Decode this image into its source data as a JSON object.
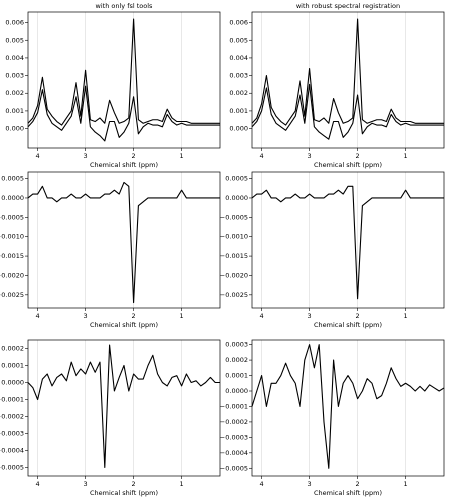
{
  "chart_data": [
    {
      "type": "line",
      "title": "with only fsl tools",
      "xlabel": "Chemical shift (ppm)",
      "x": [
        4.2,
        4.1,
        4.0,
        3.9,
        3.8,
        3.7,
        3.6,
        3.5,
        3.4,
        3.3,
        3.2,
        3.1,
        3.0,
        2.9,
        2.8,
        2.7,
        2.6,
        2.5,
        2.4,
        2.3,
        2.2,
        2.1,
        2.0,
        1.9,
        1.8,
        1.7,
        1.6,
        1.5,
        1.4,
        1.3,
        1.2,
        1.1,
        1.0,
        0.9,
        0.8,
        0.7,
        0.6,
        0.5,
        0.4,
        0.3,
        0.2
      ],
      "xlim": [
        4.2,
        0.2
      ],
      "xticks": [
        4,
        3,
        2,
        1
      ],
      "ylim": [
        -0.0011,
        0.0066
      ],
      "yticks": [
        {
          "value": 0,
          "label": "0.000"
        },
        {
          "value": 0.001,
          "label": "0.001"
        },
        {
          "value": 0.002,
          "label": "0.002"
        },
        {
          "value": 0.003,
          "label": "0.003"
        },
        {
          "value": 0.004,
          "label": "0.004"
        },
        {
          "value": 0.005,
          "label": "0.005"
        },
        {
          "value": 0.006,
          "label": "0.006"
        }
      ],
      "grid": true,
      "series": [
        {
          "color": "#000000",
          "values": [
            0.0003,
            0.0006,
            0.0013,
            0.0029,
            0.0011,
            0.0007,
            0.0004,
            0.0002,
            0.0006,
            0.001,
            0.0026,
            0.0007,
            0.0033,
            0.0005,
            0.0004,
            0.0006,
            0.0003,
            0.0016,
            0.0009,
            0.0003,
            0.0004,
            0.0006,
            0.0062,
            0.0005,
            0.0003,
            0.0004,
            0.0005,
            0.0005,
            0.0004,
            0.0011,
            0.0006,
            0.0004,
            0.0004,
            0.0004,
            0.0003,
            0.0003,
            0.0003,
            0.0003,
            0.0003,
            0.0003,
            0.0003
          ]
        },
        {
          "color": "#000000",
          "values": [
            0.0001,
            0.0004,
            0.0009,
            0.0022,
            0.0008,
            0.0003,
            0.0001,
            -0.0001,
            0.0003,
            0.0007,
            0.0018,
            0.0003,
            0.0024,
            0.0001,
            -0.0002,
            -0.0004,
            -0.0007,
            0.0004,
            0.0004,
            -0.0005,
            -0.0002,
            0.0003,
            0.0018,
            -0.0003,
            0.0001,
            0.0003,
            0.0002,
            0.0002,
            0.0001,
            0.0008,
            0.0004,
            0.0002,
            0.0003,
            0.0002,
            0.0002,
            0.0002,
            0.0002,
            0.0002,
            0.0002,
            0.0002,
            0.0002
          ]
        }
      ]
    },
    {
      "type": "line",
      "title": "with robust spectral registration",
      "xlabel": "Chemical shift (ppm)",
      "x": [
        4.2,
        4.1,
        4.0,
        3.9,
        3.8,
        3.7,
        3.6,
        3.5,
        3.4,
        3.3,
        3.2,
        3.1,
        3.0,
        2.9,
        2.8,
        2.7,
        2.6,
        2.5,
        2.4,
        2.3,
        2.2,
        2.1,
        2.0,
        1.9,
        1.8,
        1.7,
        1.6,
        1.5,
        1.4,
        1.3,
        1.2,
        1.1,
        1.0,
        0.9,
        0.8,
        0.7,
        0.6,
        0.5,
        0.4,
        0.3,
        0.2
      ],
      "xlim": [
        4.2,
        0.2
      ],
      "xticks": [
        4,
        3,
        2,
        1
      ],
      "ylim": [
        -0.0011,
        0.0066
      ],
      "yticks": [
        {
          "value": 0,
          "label": "0.000"
        },
        {
          "value": 0.001,
          "label": "0.001"
        },
        {
          "value": 0.002,
          "label": "0.002"
        },
        {
          "value": 0.003,
          "label": "0.003"
        },
        {
          "value": 0.004,
          "label": "0.004"
        },
        {
          "value": 0.005,
          "label": "0.005"
        },
        {
          "value": 0.006,
          "label": "0.006"
        }
      ],
      "grid": true,
      "series": [
        {
          "color": "#000000",
          "values": [
            0.0003,
            0.0006,
            0.0014,
            0.003,
            0.0012,
            0.0007,
            0.0004,
            0.0002,
            0.0006,
            0.001,
            0.0027,
            0.0007,
            0.0034,
            0.0005,
            0.0004,
            0.0006,
            0.0003,
            0.0017,
            0.0009,
            0.0003,
            0.0004,
            0.0006,
            0.0062,
            0.0005,
            0.0003,
            0.0004,
            0.0005,
            0.0005,
            0.0004,
            0.0011,
            0.0006,
            0.0004,
            0.0004,
            0.0004,
            0.0003,
            0.0003,
            0.0003,
            0.0003,
            0.0003,
            0.0003,
            0.0003
          ]
        },
        {
          "color": "#000000",
          "values": [
            0.0001,
            0.0004,
            0.001,
            0.0023,
            0.0008,
            0.0003,
            0.0001,
            -0.0001,
            0.0003,
            0.0007,
            0.0019,
            0.0003,
            0.0025,
            0.0001,
            -0.0002,
            -0.0004,
            -0.0006,
            0.0004,
            0.0004,
            -0.0005,
            -0.0002,
            0.0003,
            0.0019,
            -0.0003,
            0.0001,
            0.0003,
            0.0002,
            0.0002,
            0.0001,
            0.0008,
            0.0004,
            0.0002,
            0.0003,
            0.0002,
            0.0002,
            0.0002,
            0.0002,
            0.0002,
            0.0002,
            0.0002,
            0.0002
          ]
        }
      ]
    },
    {
      "type": "line",
      "xlabel": "Chemical shift (ppm)",
      "x": [
        4.2,
        4.1,
        4.0,
        3.9,
        3.8,
        3.7,
        3.6,
        3.5,
        3.4,
        3.3,
        3.2,
        3.1,
        3.0,
        2.9,
        2.8,
        2.7,
        2.6,
        2.5,
        2.4,
        2.3,
        2.2,
        2.1,
        2.0,
        1.9,
        1.8,
        1.7,
        1.6,
        1.5,
        1.4,
        1.3,
        1.2,
        1.1,
        1.0,
        0.9,
        0.8,
        0.7,
        0.6,
        0.5,
        0.4,
        0.3,
        0.2
      ],
      "xlim": [
        4.2,
        0.2
      ],
      "xticks": [
        4,
        3,
        2,
        1
      ],
      "ylim": [
        -0.00284,
        0.00067
      ],
      "yticks": [
        {
          "value": 0.0005,
          "label": "0.0005"
        },
        {
          "value": 0,
          "label": "0.0000"
        },
        {
          "value": -0.0005,
          "label": "−0.0005"
        },
        {
          "value": -0.001,
          "label": "−0.0010"
        },
        {
          "value": -0.0015,
          "label": "−0.0015"
        },
        {
          "value": -0.002,
          "label": "−0.0020"
        },
        {
          "value": -0.0025,
          "label": "−0.0025"
        }
      ],
      "grid": true,
      "series": [
        {
          "color": "#000000",
          "values": [
            0,
            0.0001,
            0.0001,
            0.0003,
            0,
            0,
            -0.0001,
            0,
            0,
            0.0001,
            0,
            0,
            0.0001,
            0,
            0,
            0,
            0.0001,
            0.0001,
            0.0002,
            0.0001,
            0.0004,
            0.0003,
            -0.0027,
            -0.0002,
            -0.0001,
            0,
            0,
            0,
            0,
            0,
            0,
            0,
            0.0002,
            0,
            0,
            0,
            0,
            0,
            0,
            0,
            0
          ]
        }
      ]
    },
    {
      "type": "line",
      "xlabel": "Chemical shift (ppm)",
      "x": [
        4.2,
        4.1,
        4.0,
        3.9,
        3.8,
        3.7,
        3.6,
        3.5,
        3.4,
        3.3,
        3.2,
        3.1,
        3.0,
        2.9,
        2.8,
        2.7,
        2.6,
        2.5,
        2.4,
        2.3,
        2.2,
        2.1,
        2.0,
        1.9,
        1.8,
        1.7,
        1.6,
        1.5,
        1.4,
        1.3,
        1.2,
        1.1,
        1.0,
        0.9,
        0.8,
        0.7,
        0.6,
        0.5,
        0.4,
        0.3,
        0.2
      ],
      "xlim": [
        4.2,
        0.2
      ],
      "xticks": [
        4,
        3,
        2,
        1
      ],
      "ylim": [
        -0.00284,
        0.00067
      ],
      "yticks": [
        {
          "value": 0.0005,
          "label": "0.0005"
        },
        {
          "value": 0,
          "label": "0.0000"
        },
        {
          "value": -0.0005,
          "label": "−0.0005"
        },
        {
          "value": -0.001,
          "label": "−0.0010"
        },
        {
          "value": -0.0015,
          "label": "−0.0015"
        },
        {
          "value": -0.002,
          "label": "−0.0020"
        },
        {
          "value": -0.0025,
          "label": "−0.0025"
        }
      ],
      "grid": true,
      "series": [
        {
          "color": "#000000",
          "values": [
            0,
            0.0001,
            0.0001,
            0.0002,
            0,
            0,
            -0.0001,
            0,
            0,
            0.0001,
            0,
            0,
            0.0001,
            0,
            0,
            0,
            0.0001,
            0.0001,
            0.0002,
            0.0001,
            0.0003,
            0.0003,
            -0.0026,
            -0.0002,
            -0.0001,
            0,
            0,
            0,
            0,
            0,
            0,
            0,
            0.0002,
            0,
            0,
            0,
            0,
            0,
            0,
            0,
            0
          ]
        }
      ]
    },
    {
      "type": "line",
      "xlabel": "Chemical shift (ppm)",
      "x": [
        4.2,
        4.1,
        4.0,
        3.9,
        3.8,
        3.7,
        3.6,
        3.5,
        3.4,
        3.3,
        3.2,
        3.1,
        3.0,
        2.9,
        2.8,
        2.7,
        2.6,
        2.5,
        2.4,
        2.3,
        2.2,
        2.1,
        2.0,
        1.9,
        1.8,
        1.7,
        1.6,
        1.5,
        1.4,
        1.3,
        1.2,
        1.1,
        1.0,
        0.9,
        0.8,
        0.7,
        0.6,
        0.5,
        0.4,
        0.3,
        0.2
      ],
      "xlim": [
        4.2,
        0.2
      ],
      "xticks": [
        4,
        3,
        2,
        1
      ],
      "ylim": [
        -0.00055,
        0.00025
      ],
      "yticks": [
        {
          "value": 0.0002,
          "label": "0.0002"
        },
        {
          "value": 0.0001,
          "label": "0.0001"
        },
        {
          "value": 0,
          "label": "0.0000"
        },
        {
          "value": -0.0001,
          "label": "−0.0001"
        },
        {
          "value": -0.0002,
          "label": "−0.0002"
        },
        {
          "value": -0.0003,
          "label": "−0.0003"
        },
        {
          "value": -0.0004,
          "label": "−0.0004"
        },
        {
          "value": -0.0005,
          "label": "−0.0005"
        }
      ],
      "grid": true,
      "series": [
        {
          "color": "#000000",
          "values": [
            0,
            -3e-05,
            -0.0001,
            2e-05,
            5e-05,
            -2e-05,
            3e-05,
            5e-05,
            1e-05,
            0.00012,
            4e-05,
            8e-05,
            5e-05,
            0.00012,
            6e-05,
            0.00012,
            -0.0005,
            0.00022,
            -5e-05,
            3e-05,
            0.0001,
            -5e-05,
            5e-05,
            2e-05,
            2e-05,
            0.0001,
            0.00016,
            5e-05,
            0,
            -2e-05,
            3e-05,
            4e-05,
            -2e-05,
            5e-05,
            0,
            1e-05,
            -2e-05,
            0,
            3e-05,
            0,
            0
          ]
        }
      ]
    },
    {
      "type": "line",
      "xlabel": "Chemical shift (ppm)",
      "x": [
        4.2,
        4.1,
        4.0,
        3.9,
        3.8,
        3.7,
        3.6,
        3.5,
        3.4,
        3.3,
        3.2,
        3.1,
        3.0,
        2.9,
        2.8,
        2.7,
        2.6,
        2.5,
        2.4,
        2.3,
        2.2,
        2.1,
        2.0,
        1.9,
        1.8,
        1.7,
        1.6,
        1.5,
        1.4,
        1.3,
        1.2,
        1.1,
        1.0,
        0.9,
        0.8,
        0.7,
        0.6,
        0.5,
        0.4,
        0.3,
        0.2
      ],
      "xlim": [
        4.2,
        0.2
      ],
      "xticks": [
        4,
        3,
        2,
        1
      ],
      "ylim": [
        -0.00055,
        0.00033
      ],
      "yticks": [
        {
          "value": 0.0003,
          "label": "0.0003"
        },
        {
          "value": 0.0002,
          "label": "0.0002"
        },
        {
          "value": 0.0001,
          "label": "0.0001"
        },
        {
          "value": 0,
          "label": "0.0000"
        },
        {
          "value": -0.0001,
          "label": "−0.0001"
        },
        {
          "value": -0.0002,
          "label": "−0.0002"
        },
        {
          "value": -0.0003,
          "label": "−0.0003"
        },
        {
          "value": -0.0004,
          "label": "−0.0004"
        },
        {
          "value": -0.0005,
          "label": "−0.0005"
        }
      ],
      "grid": true,
      "series": [
        {
          "color": "#000000",
          "values": [
            -0.0001,
            0,
            0.0001,
            -0.0001,
            5e-05,
            5e-05,
            0.0001,
            0.00018,
            0.0001,
            5e-05,
            -0.0001,
            0.0002,
            0.0003,
            0.00015,
            0.0003,
            -0.0002,
            -0.0005,
            0.0002,
            -0.0001,
            5e-05,
            0.0001,
            5e-05,
            -5e-05,
            0,
            8e-05,
            5e-05,
            -5e-05,
            -3e-05,
            5e-05,
            0.00015,
            8e-05,
            3e-05,
            5e-05,
            3e-05,
            0,
            3e-05,
            0,
            4e-05,
            2e-05,
            0,
            2e-05
          ]
        }
      ]
    }
  ]
}
